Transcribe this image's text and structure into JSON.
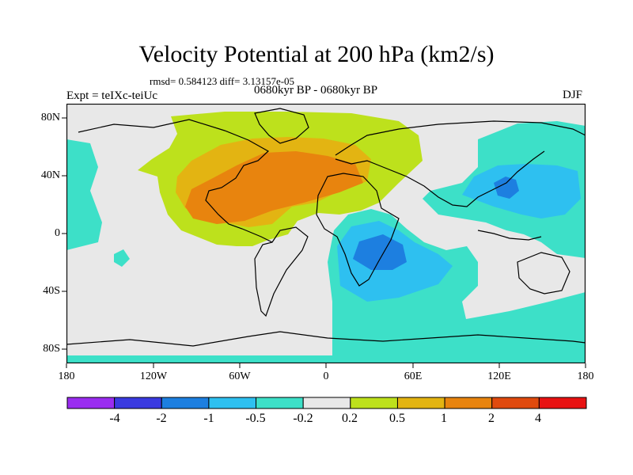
{
  "title": "Velocity Potential at 200 hPa (km2/s)",
  "stats": "rmsd= 0.584123  diff= 3.13157e-05",
  "experiment": "Expt = teIXc-teiUc",
  "period": "0680kyr BP - 0680kyr BP",
  "season": "DJF",
  "y_ticks": [
    "80N",
    "40N",
    "0",
    "40S",
    "80S"
  ],
  "x_ticks": [
    "180",
    "120W",
    "60W",
    "0",
    "60E",
    "120E",
    "180"
  ],
  "colorbar": {
    "labels": [
      "-4",
      "-2",
      "-1",
      "-0.5",
      "-0.2",
      "0.2",
      "0.5",
      "1",
      "2",
      "4"
    ],
    "colors": [
      "#9a2cf0",
      "#3a3ae0",
      "#1d7fe0",
      "#2ec0f0",
      "#3de0c8",
      "#e8e8e8",
      "#bde11c",
      "#e3b412",
      "#e8840e",
      "#e04a0e",
      "#e81212"
    ]
  }
}
